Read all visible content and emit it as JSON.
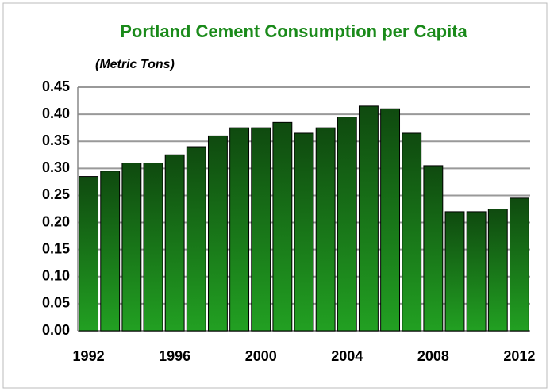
{
  "chart_data": {
    "type": "bar",
    "title": "Portland Cement Consumption per Capita",
    "subtitle": "(Metric Tons)",
    "categories": [
      "1992",
      null,
      null,
      null,
      "1996",
      null,
      null,
      null,
      "2000",
      null,
      null,
      null,
      "2004",
      null,
      null,
      null,
      "2008",
      null,
      null,
      null,
      "2012"
    ],
    "values": [
      0.285,
      0.295,
      0.31,
      0.31,
      0.325,
      0.34,
      0.36,
      0.375,
      0.375,
      0.385,
      0.365,
      0.375,
      0.395,
      0.415,
      0.41,
      0.365,
      0.305,
      0.22,
      0.22,
      0.225,
      0.245
    ],
    "color": "#1f8a1f",
    "ylim": [
      0,
      0.45
    ],
    "yticks": [
      {
        "value": 0,
        "label": "0.00"
      },
      0.05,
      {
        "value": 0.1,
        "label": "0.10"
      },
      0.15,
      {
        "value": 0.2,
        "label": "0.20"
      },
      0.25,
      {
        "value": 0.3,
        "label": "0.30"
      },
      0.35,
      {
        "value": 0.4,
        "label": "0.40"
      },
      0.45
    ],
    "grid": true
  }
}
